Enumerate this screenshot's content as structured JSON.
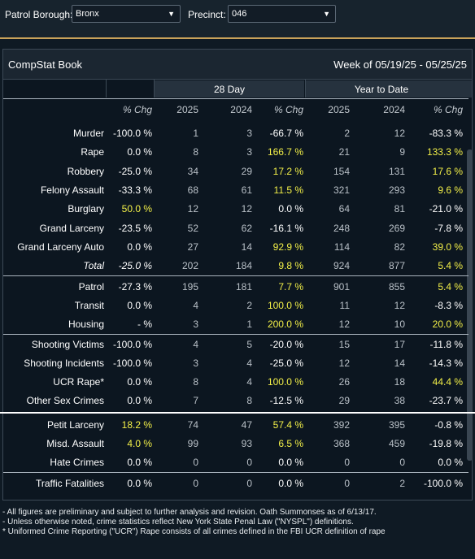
{
  "filters": {
    "borough_label": "Patrol Borough:",
    "borough_value": "Bronx",
    "precinct_label": "Precinct:",
    "precinct_value": "046"
  },
  "panel": {
    "title": "CompStat Book",
    "week": "Week of 05/19/25 - 05/25/25"
  },
  "groups": {
    "day28": "28 Day",
    "ytd": "Year to Date"
  },
  "headers": [
    "% Chg",
    "2025",
    "2024",
    "% Chg",
    "2025",
    "2024",
    "% Chg"
  ],
  "rows": [
    {
      "label": "Murder",
      "wk": "-100.0 %",
      "d25": "1",
      "d24": "3",
      "dchg": "-66.7 %",
      "y25": "2",
      "y24": "12",
      "ychg": "-83.3 %"
    },
    {
      "label": "Rape",
      "wk": "0.0 %",
      "d25": "8",
      "d24": "3",
      "dchg": "166.7 %",
      "y25": "21",
      "y24": "9",
      "ychg": "133.3 %"
    },
    {
      "label": "Robbery",
      "wk": "-25.0 %",
      "d25": "34",
      "d24": "29",
      "dchg": "17.2 %",
      "y25": "154",
      "y24": "131",
      "ychg": "17.6 %"
    },
    {
      "label": "Felony Assault",
      "wk": "-33.3 %",
      "d25": "68",
      "d24": "61",
      "dchg": "11.5 %",
      "y25": "321",
      "y24": "293",
      "ychg": "9.6 %"
    },
    {
      "label": "Burglary",
      "wk": "50.0 %",
      "d25": "12",
      "d24": "12",
      "dchg": "0.0 %",
      "y25": "64",
      "y24": "81",
      "ychg": "-21.0 %"
    },
    {
      "label": "Grand Larceny",
      "wk": "-23.5 %",
      "d25": "52",
      "d24": "62",
      "dchg": "-16.1 %",
      "y25": "248",
      "y24": "269",
      "ychg": "-7.8 %"
    },
    {
      "label": "Grand Larceny Auto",
      "wk": "0.0 %",
      "d25": "27",
      "d24": "14",
      "dchg": "92.9 %",
      "y25": "114",
      "y24": "82",
      "ychg": "39.0 %"
    },
    {
      "label": "Total",
      "wk": "-25.0 %",
      "d25": "202",
      "d24": "184",
      "dchg": "9.8 %",
      "y25": "924",
      "y24": "877",
      "ychg": "5.4 %"
    },
    {
      "label": "Patrol",
      "wk": "-27.3 %",
      "d25": "195",
      "d24": "181",
      "dchg": "7.7 %",
      "y25": "901",
      "y24": "855",
      "ychg": "5.4 %"
    },
    {
      "label": "Transit",
      "wk": "0.0 %",
      "d25": "4",
      "d24": "2",
      "dchg": "100.0 %",
      "y25": "11",
      "y24": "12",
      "ychg": "-8.3 %"
    },
    {
      "label": "Housing",
      "wk": "- %",
      "d25": "3",
      "d24": "1",
      "dchg": "200.0 %",
      "y25": "12",
      "y24": "10",
      "ychg": "20.0 %"
    },
    {
      "label": "Shooting Victims",
      "wk": "-100.0 %",
      "d25": "4",
      "d24": "5",
      "dchg": "-20.0 %",
      "y25": "15",
      "y24": "17",
      "ychg": "-11.8 %"
    },
    {
      "label": "Shooting Incidents",
      "wk": "-100.0 %",
      "d25": "3",
      "d24": "4",
      "dchg": "-25.0 %",
      "y25": "12",
      "y24": "14",
      "ychg": "-14.3 %"
    },
    {
      "label": "UCR Rape*",
      "wk": "0.0 %",
      "d25": "8",
      "d24": "4",
      "dchg": "100.0 %",
      "y25": "26",
      "y24": "18",
      "ychg": "44.4 %"
    },
    {
      "label": "Other Sex Crimes",
      "wk": "0.0 %",
      "d25": "7",
      "d24": "8",
      "dchg": "-12.5 %",
      "y25": "29",
      "y24": "38",
      "ychg": "-23.7 %"
    },
    {
      "label": "Petit Larceny",
      "wk": "18.2 %",
      "d25": "74",
      "d24": "47",
      "dchg": "57.4 %",
      "y25": "392",
      "y24": "395",
      "ychg": "-0.8 %"
    },
    {
      "label": "Misd. Assault",
      "wk": "4.0 %",
      "d25": "99",
      "d24": "93",
      "dchg": "6.5 %",
      "y25": "368",
      "y24": "459",
      "ychg": "-19.8 %"
    },
    {
      "label": "Hate Crimes",
      "wk": "0.0 %",
      "d25": "0",
      "d24": "0",
      "dchg": "0.0 %",
      "y25": "0",
      "y24": "0",
      "ychg": "0.0 %"
    },
    {
      "label": "Traffic Fatalities",
      "wk": "0.0 %",
      "d25": "0",
      "d24": "0",
      "dchg": "0.0 %",
      "y25": "0",
      "y24": "2",
      "ychg": "-100.0 %"
    }
  ],
  "colors": {
    "highlight": "#f3f048",
    "accent_border": "#c8a25a"
  },
  "footnotes": [
    "- All figures are preliminary and subject to further analysis and revision. Oath Summonses as of 6/13/17.",
    "- Unless otherwise noted, crime statistics reflect New York State Penal Law (\"NYSPL\") definitions.",
    "* Uniformed Crime Reporting (\"UCR\") Rape consists of all crimes defined in the FBI UCR definition of rape"
  ]
}
